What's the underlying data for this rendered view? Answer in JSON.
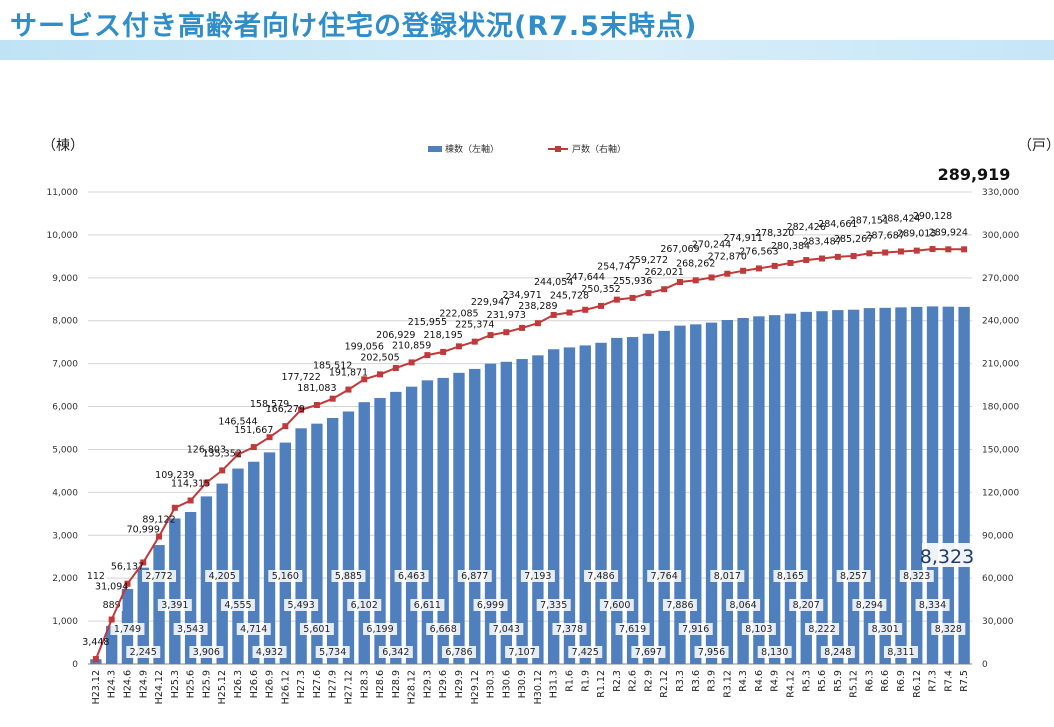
{
  "page_title": "サービス付き高齢者向け住宅の登録状況(R7.5末時点)",
  "colors": {
    "title": "#2e8ec9",
    "bar": "#4f7fbd",
    "line": "#c0393b",
    "band": "#cfe9f7"
  },
  "chart_data": {
    "type": "bar+line",
    "title": "サービス付き高齢者向け住宅の登録状況(R7.5末時点)",
    "categories": [
      "H23.12",
      "H24.3",
      "H24.6",
      "H24.9",
      "H24.12",
      "H25.3",
      "H25.6",
      "H25.9",
      "H25.12",
      "H26.3",
      "H26.6",
      "H26.9",
      "H26.12",
      "H27.3",
      "H27.6",
      "H27.9",
      "H27.12",
      "H28.3",
      "H28.6",
      "H28.9",
      "H28.12",
      "H29.3",
      "H29.6",
      "H29.9",
      "H29.12",
      "H30.3",
      "H30.6",
      "H30.9",
      "H30.12",
      "H31.3",
      "R1.6",
      "R1.9",
      "R1.12",
      "R2.3",
      "R2.6",
      "R2.9",
      "R2.12",
      "R3.3",
      "R3.6",
      "R3.9",
      "R3.12",
      "R4.3",
      "R4.6",
      "R4.9",
      "R4.12",
      "R5.3",
      "R5.6",
      "R5.9",
      "R5.12",
      "R6.3",
      "R6.6",
      "R6.9",
      "R6.12",
      "R7.3",
      "R7.4",
      "R7.5"
    ],
    "series": [
      {
        "name": "棟数（左軸）",
        "type": "bar",
        "axis": "left",
        "values": [
          112,
          889,
          1749,
          2245,
          2772,
          3391,
          3543,
          3906,
          4205,
          4555,
          4714,
          4932,
          5160,
          5493,
          5601,
          5734,
          5885,
          6102,
          6199,
          6342,
          6463,
          6611,
          6668,
          6786,
          6877,
          6999,
          7043,
          7107,
          7193,
          7335,
          7378,
          7425,
          7486,
          7600,
          7619,
          7697,
          7764,
          7886,
          7916,
          7956,
          8017,
          8064,
          8103,
          8130,
          8165,
          8207,
          8222,
          8248,
          8257,
          8294,
          8301,
          8311,
          8323,
          8334,
          8328,
          8323
        ]
      },
      {
        "name": "戸数（右軸）",
        "type": "line",
        "axis": "right",
        "values": [
          3448,
          31094,
          56137,
          70999,
          89122,
          109239,
          114315,
          126803,
          135352,
          146544,
          151667,
          158579,
          166279,
          177722,
          181083,
          185512,
          191871,
          199056,
          202505,
          206929,
          210859,
          215955,
          218195,
          222085,
          225374,
          229947,
          231973,
          234971,
          238289,
          244054,
          245728,
          247644,
          250352,
          254747,
          255936,
          259272,
          262021,
          267069,
          268262,
          270244,
          272870,
          274911,
          276563,
          278320,
          280384,
          282426,
          283487,
          284661,
          285267,
          287151,
          287687,
          288424,
          289013,
          290128,
          289924,
          289919
        ]
      }
    ],
    "bar_labels": [
      "112",
      "889",
      "1,749",
      "2,245",
      "2,772",
      "3,391",
      "3,543",
      "3,906",
      "4,205",
      "4,555",
      "4,714",
      "4,932",
      "5,160",
      "5,493",
      "5,601",
      "5,734",
      "5,885",
      "6,102",
      "6,199",
      "6,342",
      "6,463",
      "6,611",
      "6,668",
      "6,786",
      "6,877",
      "6,999",
      "7,043",
      "7,107",
      "7,193",
      "7,335",
      "7,378",
      "7,425",
      "7,486",
      "7,600",
      "7,619",
      "7,697",
      "7,764",
      "7,886",
      "7,916",
      "7,956",
      "8,017",
      "8,064",
      "8,103",
      "8,130",
      "8,165",
      "8,207",
      "8,222",
      "8,248",
      "8,257",
      "8,294",
      "8,301",
      "8,311",
      "8,323",
      "8,334",
      "8,328",
      "8,323"
    ],
    "line_labels": [
      "3,448",
      "31,094",
      "56,137",
      "70,999",
      "89,122",
      "109,239",
      "114,315",
      "126,803",
      "135,352",
      "146,544",
      "151,667",
      "158,579",
      "166,279",
      "177,722",
      "181,083",
      "185,512",
      "191,871",
      "199,056",
      "202,505",
      "206,929",
      "210,859",
      "215,955",
      "218,195",
      "222,085",
      "225,374",
      "229,947",
      "231,973",
      "234,971",
      "238,289",
      "244,054",
      "245,728",
      "247,644",
      "250,352",
      "254,747",
      "255,936",
      "259,272",
      "262,021",
      "267,069",
      "268,262",
      "270,244",
      "272,870",
      "274,911",
      "276,563",
      "278,320",
      "280,384",
      "282,426",
      "283,487",
      "284,661",
      "285,267",
      "287,151",
      "287,687",
      "288,424",
      "289,013",
      "290,128",
      "289,924",
      "289,919"
    ],
    "y_left": {
      "label": "（棟）",
      "min": 0,
      "max": 11000,
      "ticks": [
        "0",
        "1,000",
        "2,000",
        "3,000",
        "4,000",
        "5,000",
        "6,000",
        "7,000",
        "8,000",
        "9,000",
        "10,000",
        "11,000"
      ]
    },
    "y_right": {
      "label": "（戸）",
      "min": 0,
      "max": 330000,
      "ticks": [
        "0",
        "30,000",
        "60,000",
        "90,000",
        "120,000",
        "150,000",
        "180,000",
        "210,000",
        "240,000",
        "270,000",
        "300,000",
        "330,000"
      ]
    },
    "legend": {
      "position": "top-center",
      "items": [
        "棟数（左軸）",
        "戸数（右軸）"
      ]
    },
    "grid": true,
    "callout_bar": "8,323",
    "callout_line": "289,919"
  }
}
